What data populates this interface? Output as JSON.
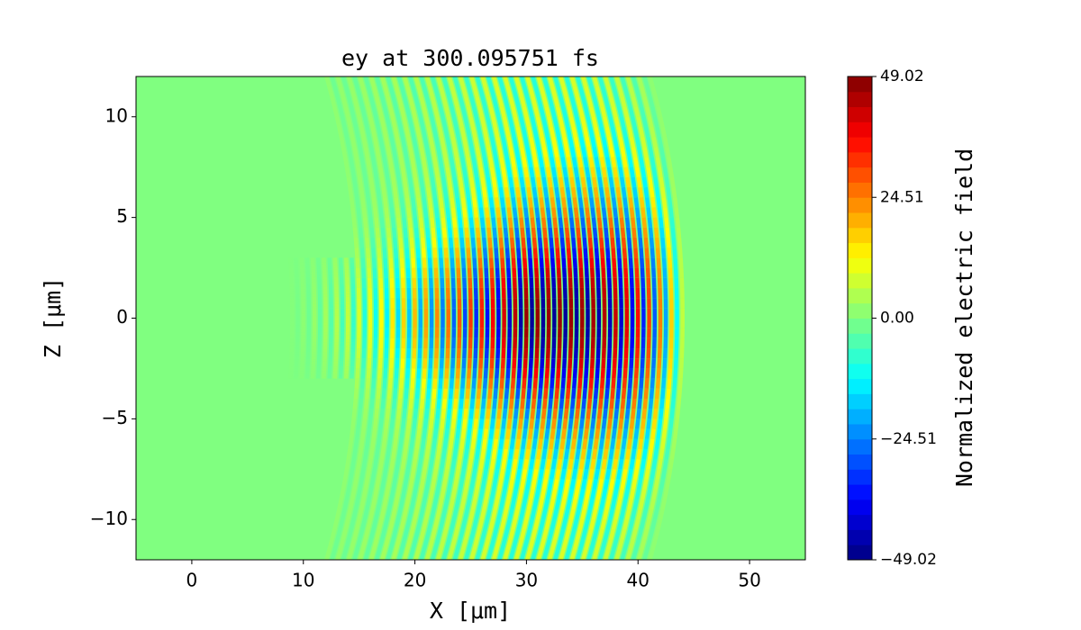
{
  "chart_data": {
    "type": "heatmap",
    "title": "ey at 300.095751 fs",
    "x_label": "X [μm]",
    "y_label": "Z [μm]",
    "colorbar_label": "Normalized electric field",
    "colormap": "jet",
    "xlim": [
      -5,
      55
    ],
    "xticks": [
      0,
      10,
      20,
      30,
      40,
      50
    ],
    "ylim": [
      -12,
      12
    ],
    "yticks": [
      {
        "value": -10,
        "label": "−10"
      },
      {
        "value": -5,
        "label": "−5"
      },
      0,
      5,
      10
    ],
    "clim": [
      -49.02,
      49.02
    ],
    "cticks": [
      {
        "value": -49.02,
        "label": "−49.02"
      },
      {
        "value": -24.51,
        "label": "−24.51"
      },
      {
        "value": 0,
        "label": "0.00"
      },
      24.51,
      49.02
    ]
  }
}
